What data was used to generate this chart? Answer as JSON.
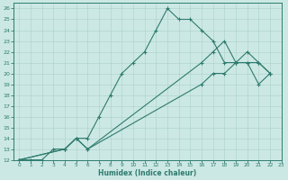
{
  "xlabel": "Humidex (Indice chaleur)",
  "bg_color": "#cce8e4",
  "line_color": "#2e7b6e",
  "grid_color": "#aacfca",
  "xlim": [
    -0.5,
    23
  ],
  "ylim": [
    12,
    26.5
  ],
  "xticks": [
    0,
    1,
    2,
    3,
    4,
    5,
    6,
    7,
    8,
    9,
    10,
    11,
    12,
    13,
    14,
    15,
    16,
    17,
    18,
    19,
    20,
    21,
    22,
    23
  ],
  "yticks": [
    12,
    13,
    14,
    15,
    16,
    17,
    18,
    19,
    20,
    21,
    22,
    23,
    24,
    25,
    26
  ],
  "line1_x": [
    0,
    1,
    2,
    3,
    4,
    5,
    6,
    7,
    8,
    9,
    10,
    11,
    12,
    13,
    14,
    15,
    16,
    17,
    18,
    19,
    20,
    21,
    22
  ],
  "line1_y": [
    12,
    12,
    12,
    13,
    13,
    14,
    14,
    16,
    18,
    20,
    21,
    22,
    24,
    26,
    25,
    25,
    24,
    23,
    21,
    21,
    21,
    19,
    20
  ],
  "line2_x": [
    0,
    4,
    5,
    6,
    16,
    17,
    18,
    19,
    20,
    21,
    22
  ],
  "line2_y": [
    12,
    13,
    14,
    13,
    21,
    22,
    23,
    21,
    22,
    21,
    20
  ],
  "line3_x": [
    0,
    4,
    5,
    6,
    16,
    17,
    18,
    19,
    20,
    21,
    22
  ],
  "line3_y": [
    12,
    13,
    14,
    13,
    19,
    20,
    20,
    21,
    21,
    21,
    20
  ]
}
